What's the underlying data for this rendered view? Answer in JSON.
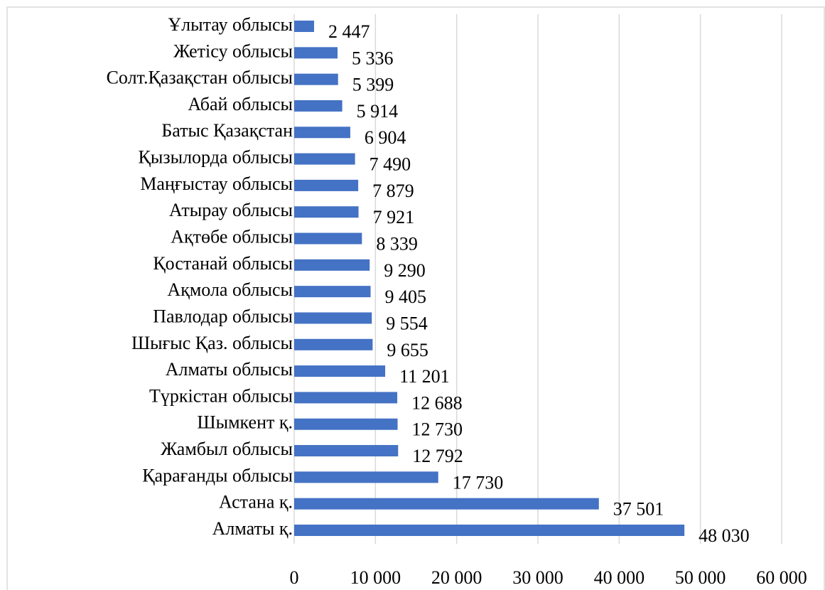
{
  "chart_data": {
    "type": "bar",
    "orientation": "horizontal",
    "color": "#4472c4",
    "categories": [
      "Ұлытау облысы",
      "Жетісу облысы",
      "Солт.Қазақстан облысы",
      "Абай облысы",
      "Батыс Қазақстан",
      "Қызылорда облысы",
      "Маңғыстау облысы",
      "Атырау облысы",
      "Ақтөбе облысы",
      "Қостанай облысы",
      "Ақмола облысы",
      "Павлодар облысы",
      "Шығыс Қаз. облысы",
      "Алматы облысы",
      "Түркістан облысы",
      "Шымкент қ.",
      "Жамбыл облысы",
      "Қарағанды облысы",
      "Астана қ.",
      "Алматы қ."
    ],
    "values": [
      2447,
      5336,
      5399,
      5914,
      6904,
      7490,
      7879,
      7921,
      8339,
      9290,
      9405,
      9554,
      9655,
      11201,
      12688,
      12730,
      12792,
      17730,
      37501,
      48030
    ],
    "value_labels": [
      "2 447",
      "5 336",
      "5 399",
      "5 914",
      "6 904",
      "7 490",
      "7 879",
      "7 921",
      "8 339",
      "9 290",
      "9 405",
      "9 554",
      "9 655",
      "11 201",
      "12 688",
      "12 730",
      "12 792",
      "17 730",
      "37 501",
      "48 030"
    ],
    "xlim": [
      0,
      60000
    ],
    "xticks": [
      0,
      {
        "value": 10000,
        "label": "10 000"
      },
      {
        "value": 20000,
        "label": "20 000"
      },
      {
        "value": 30000,
        "label": "30 000"
      },
      {
        "value": 40000,
        "label": "40 000"
      },
      {
        "value": 50000,
        "label": "50 000"
      },
      {
        "value": 60000,
        "label": "60 000"
      }
    ],
    "grid": true
  }
}
